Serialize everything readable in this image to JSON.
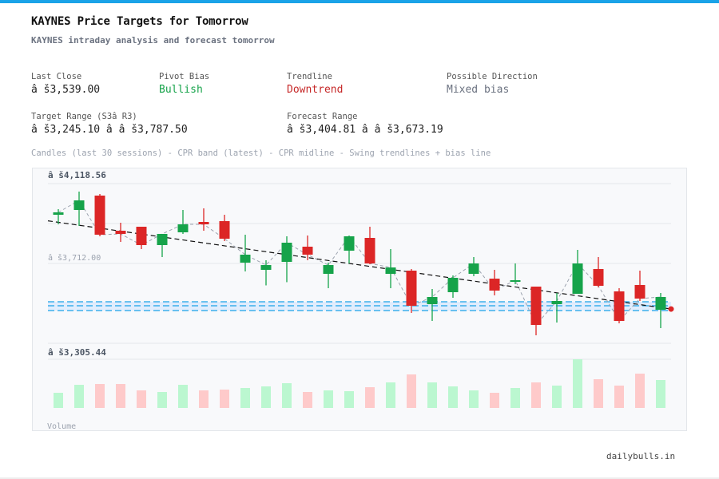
{
  "header": {
    "title": "KAYNES Price Targets for Tomorrow",
    "subtitle": "KAYNES intraday analysis and forecast tomorrow",
    "accent_color": "#1aa3e8"
  },
  "stats": {
    "last_close": {
      "label": "Last Close",
      "value": "â š3,539.00"
    },
    "pivot_bias": {
      "label": "Pivot Bias",
      "value": "Bullish",
      "color": "#16a34a"
    },
    "trendline": {
      "label": "Trendline",
      "value": "Downtrend",
      "color": "#c62828"
    },
    "direction": {
      "label": "Possible Direction",
      "value": "Mixed bias"
    },
    "target_range": {
      "label": "Target Range (S3â  R3)",
      "value": "â š3,245.10 â   â š3,787.50"
    },
    "forecast_range": {
      "label": "Forecast Range",
      "value": "â š3,404.81 â   â š3,673.19"
    }
  },
  "legend_text": "Candles (last 30 sessions) - CPR band (latest) - CPR midline - Swing trendlines + bias line",
  "chart_data": {
    "type": "candlestick",
    "y_tick_labels": [
      "â š4,118.56",
      "â š3,712.00",
      "â š3,305.44"
    ],
    "y_ticks": [
      4118.56,
      3712.0,
      3305.44
    ],
    "ylim": [
      3305.44,
      4118.56
    ],
    "grid": true,
    "up_color": "#16a34a",
    "down_color": "#dc2626",
    "candles": [
      {
        "o": 3960.0,
        "h": 3988.5,
        "l": 3911.2,
        "c": 3972.2
      },
      {
        "o": 3984.4,
        "h": 4078.0,
        "l": 3903.1,
        "c": 4033.2
      },
      {
        "o": 4057.6,
        "h": 4065.7,
        "l": 3850.2,
        "c": 3858.4
      },
      {
        "o": 3878.7,
        "h": 3919.4,
        "l": 3821.8,
        "c": 3862.4
      },
      {
        "o": 3899.0,
        "h": 3899.0,
        "l": 3785.2,
        "c": 3805.5
      },
      {
        "o": 3805.5,
        "h": 3862.4,
        "l": 3744.5,
        "c": 3862.4
      },
      {
        "o": 3870.6,
        "h": 3984.4,
        "l": 3862.4,
        "c": 3911.2
      },
      {
        "o": 3923.4,
        "h": 3992.5,
        "l": 3878.7,
        "c": 3911.2
      },
      {
        "o": 3927.5,
        "h": 3960.0,
        "l": 3825.8,
        "c": 3838.0
      },
      {
        "o": 3716.1,
        "h": 3858.4,
        "l": 3671.3,
        "c": 3756.7
      },
      {
        "o": 3679.5,
        "h": 3728.3,
        "l": 3600.3,
        "c": 3703.8
      },
      {
        "o": 3720.1,
        "h": 3850.2,
        "l": 3616.6,
        "c": 3817.7
      },
      {
        "o": 3797.4,
        "h": 3854.3,
        "l": 3728.3,
        "c": 3756.7
      },
      {
        "o": 3659.1,
        "h": 3716.1,
        "l": 3586.0,
        "c": 3703.8
      },
      {
        "o": 3777.0,
        "h": 3854.3,
        "l": 3712.0,
        "c": 3850.2
      },
      {
        "o": 3842.1,
        "h": 3899.0,
        "l": 3707.9,
        "c": 3712.0
      },
      {
        "o": 3659.1,
        "h": 3785.2,
        "l": 3586.0,
        "c": 3691.6
      },
      {
        "o": 3675.4,
        "h": 3683.5,
        "l": 3460.0,
        "c": 3496.5
      },
      {
        "o": 3504.6,
        "h": 3581.9,
        "l": 3419.3,
        "c": 3541.2
      },
      {
        "o": 3565.6,
        "h": 3651.0,
        "l": 3537.1,
        "c": 3638.8
      },
      {
        "o": 3659.1,
        "h": 3744.5,
        "l": 3646.9,
        "c": 3712.0
      },
      {
        "o": 3634.7,
        "h": 3679.5,
        "l": 3549.4,
        "c": 3573.8
      },
      {
        "o": 3618.5,
        "h": 3712.0,
        "l": 3606.3,
        "c": 3626.6
      },
      {
        "o": 3594.1,
        "h": 3594.1,
        "l": 3346.1,
        "c": 3398.9
      },
      {
        "o": 3504.6,
        "h": 3561.6,
        "l": 3411.1,
        "c": 3520.9
      },
      {
        "o": 3557.5,
        "h": 3781.1,
        "l": 3557.5,
        "c": 3712.0
      },
      {
        "o": 3683.5,
        "h": 3744.5,
        "l": 3590.1,
        "c": 3598.2
      },
      {
        "o": 3569.7,
        "h": 3585.9,
        "l": 3407.0,
        "c": 3419.3
      },
      {
        "o": 3602.2,
        "h": 3675.4,
        "l": 3520.9,
        "c": 3533.1
      },
      {
        "o": 3476.2,
        "h": 3561.6,
        "l": 3382.7,
        "c": 3541.2
      }
    ],
    "volume_relative": [
      19,
      29,
      30,
      30,
      22,
      20,
      29,
      22,
      23,
      25,
      27,
      31,
      20,
      22,
      21,
      26,
      32,
      42,
      32,
      27,
      22,
      19,
      25,
      32,
      28,
      61,
      36,
      28,
      43,
      35
    ],
    "volume_label": "Volume",
    "cpr_band": {
      "tc": 3516.8,
      "pivot": 3496.5,
      "bc": 3472.1,
      "color": "#1aa3e8"
    },
    "bias_line": {
      "start": 3929.0,
      "end": 3480.0
    },
    "bias_point": 3480.0
  },
  "footer": "dailybulls.in"
}
